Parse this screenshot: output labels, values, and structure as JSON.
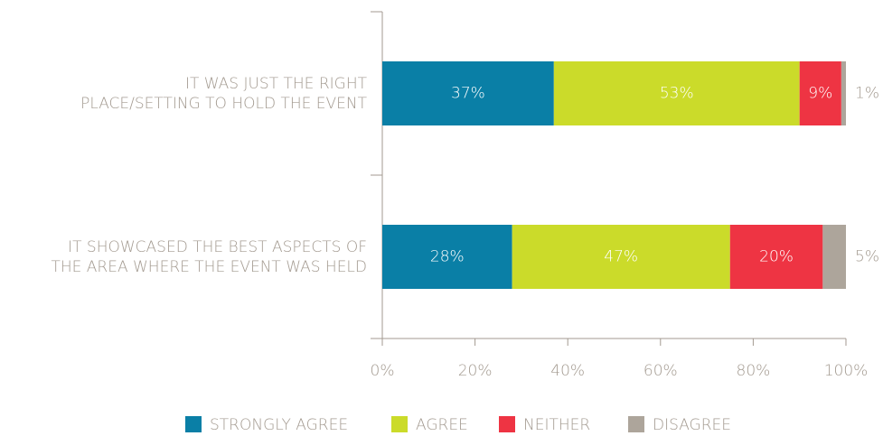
{
  "chart_data": {
    "type": "stacked-barh",
    "categories": [
      "IT WAS JUST THE RIGHT\nPLACE/SETTING TO HOLD THE EVENT",
      "IT SHOWCASED THE BEST ASPECTS OF\nTHE AREA WHERE THE EVENT WAS HELD"
    ],
    "series": [
      {
        "name": "STRONGLY AGREE",
        "color": "#0a7fa6",
        "values": [
          37,
          28
        ],
        "value_labels": [
          "37%",
          "28%"
        ]
      },
      {
        "name": "AGREE",
        "color": "#cbdb2a",
        "values": [
          53,
          47
        ],
        "value_labels": [
          "53%",
          "47%"
        ]
      },
      {
        "name": "NEITHER",
        "color": "#ee3443",
        "values": [
          9,
          20
        ],
        "value_labels": [
          "9%",
          "20%"
        ]
      },
      {
        "name": "DISAGREE",
        "color": "#ada59b",
        "values": [
          1,
          5
        ],
        "value_labels": [
          "1%",
          "5%"
        ]
      }
    ],
    "xlim": [
      0,
      100
    ],
    "xticks": [
      {
        "value": 0,
        "label": "0%"
      },
      {
        "value": 20,
        "label": "20%"
      },
      {
        "value": 40,
        "label": "40%"
      },
      {
        "value": 60,
        "label": "60%"
      },
      {
        "value": 80,
        "label": "80%"
      },
      {
        "value": 100,
        "label": "100%"
      }
    ],
    "legend": "bottom"
  }
}
